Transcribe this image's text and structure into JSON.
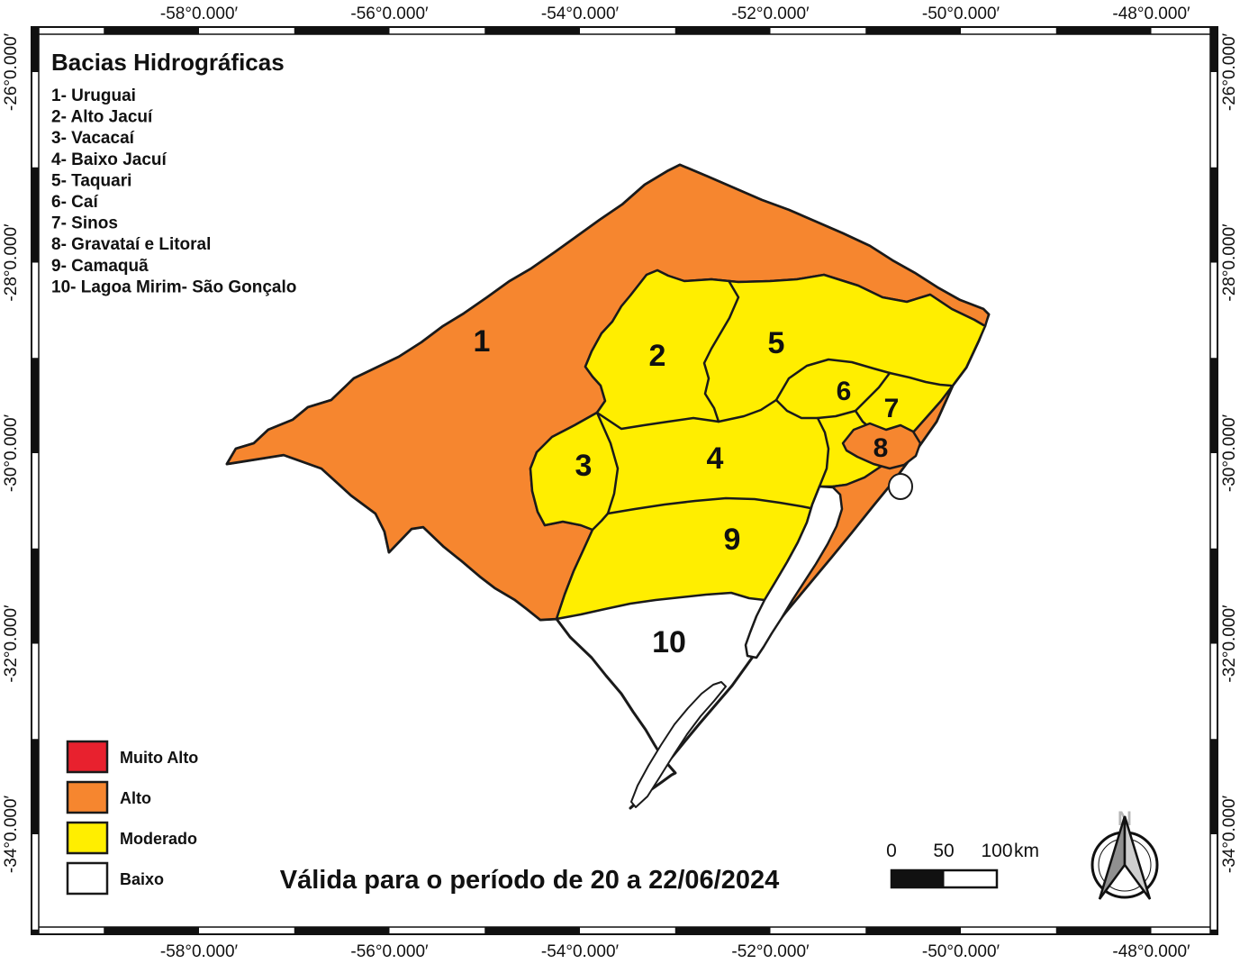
{
  "header": {
    "title": "Bacias Hidrográficas"
  },
  "basins": [
    {
      "id": "1",
      "name": "Uruguai",
      "level": "Alto"
    },
    {
      "id": "2",
      "name": "Alto Jacuí",
      "level": "Moderado"
    },
    {
      "id": "3",
      "name": "Vacacaí",
      "level": "Moderado"
    },
    {
      "id": "4",
      "name": "Baixo Jacuí",
      "level": "Moderado"
    },
    {
      "id": "5",
      "name": "Taquari",
      "level": "Moderado"
    },
    {
      "id": "6",
      "name": "Caí",
      "level": "Moderado"
    },
    {
      "id": "7",
      "name": "Sinos",
      "level": "Moderado"
    },
    {
      "id": "8",
      "name": "Gravataí e Litoral",
      "level": "Alto"
    },
    {
      "id": "9",
      "name": "Camaquã",
      "level": "Moderado"
    },
    {
      "id": "10",
      "name": "Lagoa Mirim- São Gonçalo",
      "level": "Baixo"
    }
  ],
  "legend": {
    "items": [
      {
        "label": "Muito Alto",
        "color": "#e8212e"
      },
      {
        "label": "Alto",
        "color": "#f6862f"
      },
      {
        "label": "Moderado",
        "color": "#ffee00"
      },
      {
        "label": "Baixo",
        "color": "#ffffff"
      }
    ]
  },
  "validity": "Válida para o período de 20 a 22/06/2024",
  "scalebar": {
    "labels": [
      "0",
      "50",
      "100"
    ],
    "unit": "km"
  },
  "north_label": "N",
  "axes": {
    "x_labels": [
      "-58°0.000′",
      "-56°0.000′",
      "-54°0.000′",
      "-52°0.000′",
      "-50°0.000′",
      "-48°0.000′"
    ],
    "y_labels": [
      "-26°0.000′",
      "-28°0.000′",
      "-30°0.000′",
      "-32°0.000′",
      "-34°0.000′"
    ]
  },
  "map_colors": {
    "muito_alto": "#e8212e",
    "alto": "#f6862f",
    "moderado": "#ffee00",
    "baixo": "#ffffff",
    "border": "#1a1a1a"
  }
}
